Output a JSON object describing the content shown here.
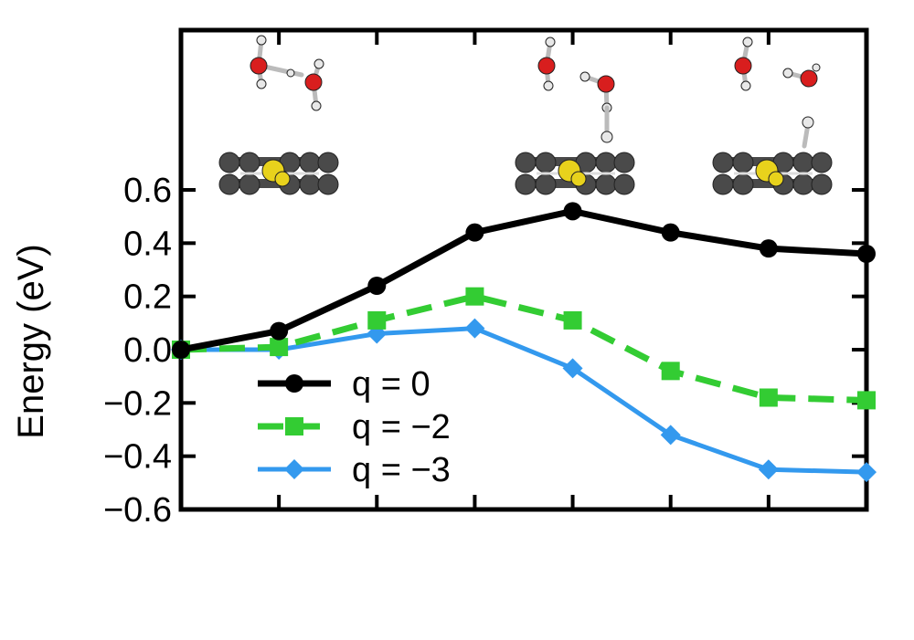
{
  "chart_data": {
    "type": "line",
    "ylabel": "Energy (eV)",
    "xlabel": "",
    "ylim": [
      -0.6,
      1.2
    ],
    "xlim": [
      0,
      7
    ],
    "x": [
      0,
      1,
      2,
      3,
      4,
      5,
      6,
      7
    ],
    "yticks": [
      -0.6,
      -0.4,
      -0.2,
      0.0,
      0.2,
      0.4,
      0.6
    ],
    "ytick_labels": [
      "−0.6",
      "−0.4",
      "−0.2",
      "0.0",
      "0.2",
      "0.4",
      "0.6"
    ],
    "grid": false,
    "legend_position": "bottom-left",
    "series": [
      {
        "name": "q = 0",
        "values": [
          0.0,
          0.07,
          0.24,
          0.44,
          0.52,
          0.44,
          0.38,
          0.36
        ],
        "color": "#000000",
        "marker": "circle",
        "dash": "solid"
      },
      {
        "name": "q = −2",
        "values": [
          0.0,
          0.01,
          0.11,
          0.2,
          0.11,
          -0.08,
          -0.18,
          -0.19
        ],
        "color": "#33cc33",
        "marker": "square",
        "dash": "dashed"
      },
      {
        "name": "q = −3",
        "values": [
          0.0,
          0.0,
          0.06,
          0.08,
          -0.07,
          -0.32,
          -0.45,
          -0.46
        ],
        "color": "#3399ee",
        "marker": "diamond",
        "dash": "solid"
      }
    ],
    "annotations": [
      {
        "type": "molecule-inset",
        "position_x": 0.8,
        "description": "two water molecules above a graphene layer with a yellow dopant atom"
      },
      {
        "type": "molecule-inset",
        "position_x": 4.0,
        "description": "water molecules with a hydrogen pointing at the dopant"
      },
      {
        "type": "molecule-inset",
        "position_x": 6.1,
        "description": "hydroxyl and water above the layer, hydrogen bound to dopant"
      }
    ]
  },
  "colors": {
    "carbon": "#4a4a4a",
    "dopant": "#e8d21c",
    "oxygen": "#d81e1e",
    "hydrogen": "#e8e8e8"
  }
}
